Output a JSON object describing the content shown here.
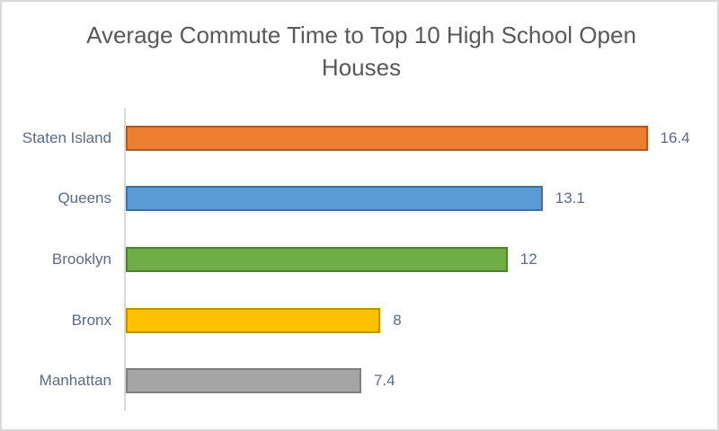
{
  "chart_data": {
    "type": "bar",
    "orientation": "horizontal",
    "title": "Average Commute Time to Top 10 High School Open Houses",
    "categories": [
      "Staten Island",
      "Queens",
      "Brooklyn",
      "Bronx",
      "Manhattan"
    ],
    "values": [
      16.4,
      13.1,
      12,
      8,
      7.4
    ],
    "data_labels": [
      "16.4",
      "13.1",
      "12",
      "8",
      "7.4"
    ],
    "bar_colors": [
      "#ED7D31",
      "#5B9BD5",
      "#70AD47",
      "#FFC000",
      "#A5A5A5"
    ],
    "bar_border_colors": [
      "#AE5A21",
      "#41719C",
      "#507E32",
      "#BF9000",
      "#7F7F7F"
    ],
    "xlabel": "",
    "ylabel": "",
    "xlim": [
      0,
      16.4
    ],
    "x_axis_labels_visible": false,
    "gridlines": false,
    "legend": false
  },
  "colors": {
    "background": "#FFFFFF",
    "frame_border": "#D9D9D9",
    "axis_line": "#D9D9D9",
    "title_text": "#595959",
    "label_text": "#5A6A8C"
  }
}
